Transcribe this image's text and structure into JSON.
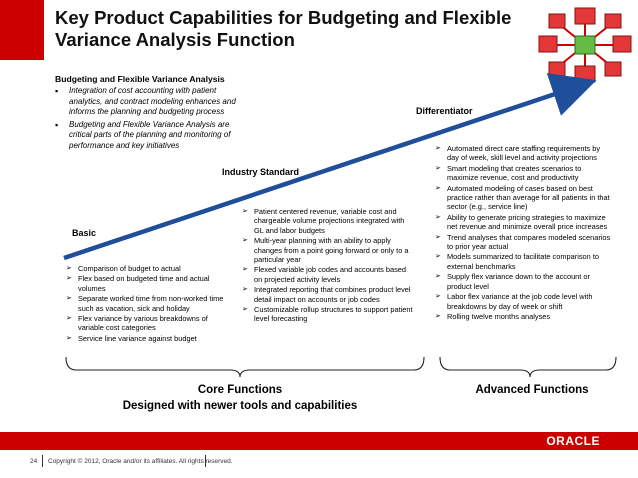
{
  "title": "Key Product Capabilities for Budgeting and Flexible Variance Analysis Function",
  "subheading": "Budgeting and Flexible Variance Analysis",
  "intro_bullets": [
    "Integration of cost accounting with patient analytics, and contract modeling enhances and informs the planning and budgeting process",
    "Budgeting and Flexible Variance Analysis are critical parts of the planning and monitoring of performance and key initiatives"
  ],
  "stages": {
    "basic": "Basic",
    "industry": "Industry Standard",
    "differentiator": "Differentiator"
  },
  "basic_items": [
    "Comparison of budget to actual",
    "Flex based on budgeted time and actual volumes",
    "Separate worked time from non-worked time such as vacation, sick and holiday",
    "Flex variance by various breakdowns of variable cost categories",
    "Service line variance against budget"
  ],
  "industry_items": [
    "Patient centered revenue, variable cost and chargeable volume projections integrated with GL and labor budgets",
    "Multi-year planning with an ability to apply changes from a point going forward or only to a particular year",
    "Flexed variable job codes and accounts based on projected activity levels",
    "Integrated reporting that combines product level detail impact on accounts or job codes",
    "Customizable rollup structures to support patient level forecasting"
  ],
  "differentiator_items": [
    "Automated direct care staffing requirements by day of week, skill level and activity projections",
    "Smart modeling that creates scenarios to maximize revenue, cost and productivity",
    "Automated modeling of cases based on best practice rather than average for all patients in that sector (e.g., service line)",
    "Ability to generate pricing strategies to maximize net revenue and minimize overall price increases",
    "Trend analyses that compares modeled scenarios to prior year actual",
    "Models summarized to facilitate comparison to external benchmarks",
    "Supply flex variance down to the account or product level",
    "Labor flex variance at the job code level with breakdowns by day of week or shift",
    "Rolling twelve months analyses"
  ],
  "footer_labels": {
    "core_line1": "Core Functions",
    "core_line2": "Designed with newer tools and capabilities",
    "advanced": "Advanced Functions"
  },
  "footer": {
    "page_number": "24",
    "copyright": "Copyright © 2012, Oracle and/or its affiliates. All rights reserved.",
    "brand": "ORACLE"
  },
  "colors": {
    "brand_red": "#cc0000",
    "arrow_blue": "#1f4e9a",
    "logo_green": "#66bb44"
  },
  "icons": {
    "logo": "network-cubes-logo",
    "bullet": "arrowhead-bullet"
  }
}
